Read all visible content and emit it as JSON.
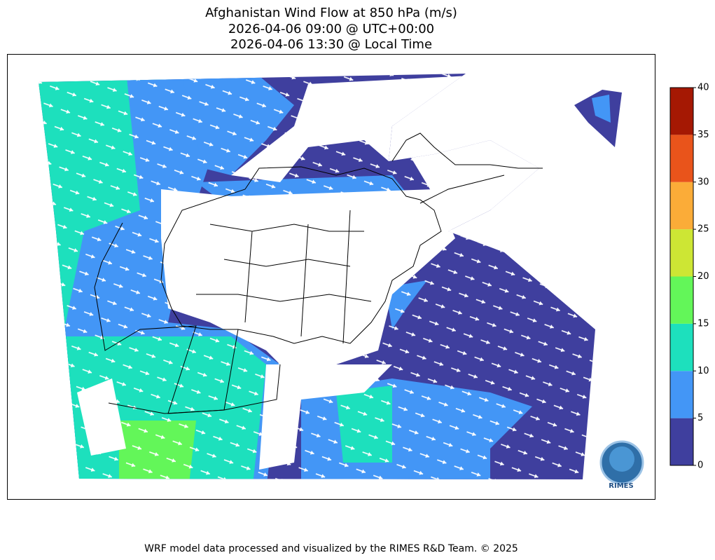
{
  "title": [
    "Afghanistan Wind Flow at 850 hPa (m/s)",
    "2026-04-06 09:00 @ UTC+00:00",
    "2026-04-06 13:30 @ Local Time"
  ],
  "colorbar": {
    "lim": [
      0,
      40
    ],
    "ticks": [
      0,
      5,
      10,
      15,
      20,
      25,
      30,
      35,
      40
    ],
    "colors": [
      "#3f3f9e",
      "#4396f6",
      "#1de0bd",
      "#63f659",
      "#cde634",
      "#fbac38",
      "#e9541b",
      "#a51803"
    ]
  },
  "logo": {
    "label": "RIMES"
  },
  "footer": "WRF model data processed and visualized by the RIMES R&D Team. © 2025"
}
